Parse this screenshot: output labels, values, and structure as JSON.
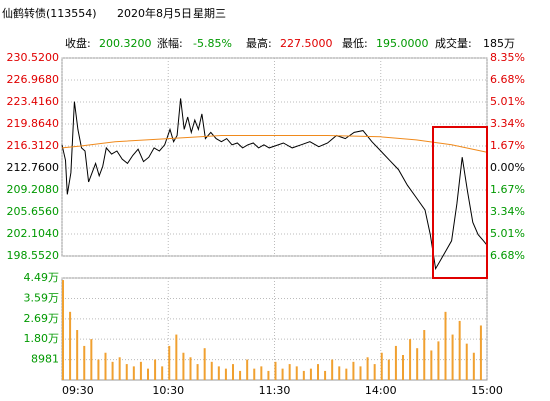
{
  "header": {
    "name": "仙鹤转债(113554)",
    "date": "2020年8月5日",
    "weekday": "星期三"
  },
  "stats": [
    {
      "label": "收盘:",
      "value": "200.3200"
    },
    {
      "label": "涨幅:",
      "value": "-5.85%"
    },
    {
      "label": "最高:",
      "value": "227.5000"
    },
    {
      "label": "最低:",
      "value": "195.0000"
    },
    {
      "label": "成交量:",
      "value": "185万"
    }
  ],
  "chart_data": [
    {
      "type": "line",
      "x": [
        0,
        2,
        3,
        5,
        7,
        9,
        11,
        13,
        15,
        17,
        19,
        21,
        23,
        25,
        28,
        31,
        34,
        37,
        40,
        43,
        46,
        49,
        52,
        55,
        58,
        61,
        63,
        65,
        67,
        69,
        71,
        73,
        75,
        77,
        79,
        81,
        84,
        87,
        90,
        93,
        96,
        99,
        102,
        105,
        108,
        111,
        114,
        117,
        120,
        125,
        130,
        135,
        140,
        145,
        150,
        155,
        160,
        165,
        170,
        175,
        180,
        185,
        190,
        195,
        200,
        205,
        208,
        211,
        214,
        217,
        220,
        223,
        226,
        229,
        232,
        235,
        238,
        240
      ],
      "series": [
        {
          "color": "#000000",
          "values": [
            216.5,
            214,
            208.5,
            212,
            223.5,
            219,
            216,
            215.5,
            210.5,
            212,
            213.5,
            211.5,
            213,
            216,
            215,
            215.5,
            214.2,
            213.5,
            214.8,
            215.8,
            213.8,
            214.5,
            216,
            215.5,
            216.5,
            219,
            217,
            218,
            224,
            219,
            221,
            218.5,
            220.5,
            219,
            221.5,
            217.5,
            218.5,
            217.5,
            217,
            217.5,
            216.5,
            216.8,
            216,
            216.5,
            216.8,
            216,
            216.5,
            216,
            216.3,
            216.8,
            216,
            216.5,
            217,
            216.2,
            216.8,
            218,
            217.5,
            218.5,
            218.8,
            217,
            215.5,
            214,
            212.5,
            210,
            208,
            206,
            202,
            196.5,
            198,
            199.5,
            201,
            207,
            214.5,
            209,
            204,
            202,
            201,
            200.3
          ]
        },
        {
          "color": "#f08a1c",
          "x": [
            0,
            10,
            30,
            60,
            90,
            120,
            150,
            180,
            200,
            220,
            240
          ],
          "values": [
            216,
            216.3,
            217,
            217.5,
            218,
            218,
            218,
            217.8,
            217.3,
            216.5,
            215.3
          ]
        }
      ],
      "xlim": [
        0,
        240
      ],
      "ylim": [
        198.552,
        230.52
      ],
      "yticks": [
        {
          "value": 230.52,
          "label": "230.5200"
        },
        {
          "value": 226.968,
          "label": "226.9680"
        },
        {
          "value": 223.416,
          "label": "223.4160"
        },
        {
          "value": 219.864,
          "label": "219.8640"
        },
        {
          "value": 216.312,
          "label": "216.3120"
        },
        {
          "value": 212.76,
          "label": "212.7600"
        },
        {
          "value": 209.208,
          "label": "209.2080"
        },
        {
          "value": 205.656,
          "label": "205.6560"
        },
        {
          "value": 202.104,
          "label": "202.1040"
        },
        {
          "value": 198.552,
          "label": "198.5520"
        }
      ],
      "y2lim": [
        -6.68,
        8.35
      ],
      "y2ticks": [
        {
          "value": 8.35,
          "label": "8.35%"
        },
        {
          "value": 6.68,
          "label": "6.68%"
        },
        {
          "value": 5.01,
          "label": "5.01%"
        },
        {
          "value": 3.34,
          "label": "3.34%"
        },
        {
          "value": 1.67,
          "label": "1.67%"
        },
        {
          "value": 0,
          "label": "0.00%"
        },
        {
          "value": -1.67,
          "label": "1.67%"
        },
        {
          "value": -3.34,
          "label": "3.34%"
        },
        {
          "value": -5.01,
          "label": "5.01%"
        },
        {
          "value": -6.68,
          "label": "6.68%"
        }
      ],
      "grid": true
    },
    {
      "type": "bar",
      "color": "#f0a030",
      "x": [
        0,
        4,
        8,
        12,
        16,
        20,
        24,
        28,
        32,
        36,
        40,
        44,
        48,
        52,
        56,
        60,
        64,
        68,
        72,
        76,
        80,
        84,
        88,
        92,
        96,
        100,
        104,
        108,
        112,
        116,
        120,
        124,
        128,
        132,
        136,
        140,
        144,
        148,
        152,
        156,
        160,
        164,
        168,
        172,
        176,
        180,
        184,
        188,
        192,
        196,
        200,
        204,
        208,
        212,
        216,
        220,
        224,
        228,
        232,
        236
      ],
      "values": [
        44000,
        30000,
        22000,
        15000,
        18000,
        9000,
        12000,
        8000,
        10000,
        7000,
        6000,
        8000,
        5000,
        9000,
        6000,
        15000,
        20000,
        12000,
        10000,
        7000,
        14000,
        8000,
        6000,
        5000,
        7000,
        4000,
        9000,
        5000,
        6000,
        4000,
        8000,
        5000,
        7000,
        6000,
        4000,
        5000,
        7000,
        4000,
        9000,
        6000,
        5000,
        8000,
        6000,
        10000,
        7000,
        12000,
        9000,
        15000,
        11000,
        18000,
        14000,
        22000,
        13000,
        17000,
        30000,
        20000,
        26000,
        16000,
        12000,
        24000
      ],
      "xlim": [
        0,
        240
      ],
      "xticks": [
        {
          "value": 0,
          "label": "09:30"
        },
        {
          "value": 60,
          "label": "10:30"
        },
        {
          "value": 120,
          "label": "11:30"
        },
        {
          "value": 180,
          "label": "14:00"
        },
        {
          "value": 240,
          "label": "15:00"
        }
      ],
      "ylim": [
        0,
        44900
      ],
      "yticks": [
        {
          "value": 44900,
          "label": "4.49万"
        },
        {
          "value": 35900,
          "label": "3.59万"
        },
        {
          "value": 26900,
          "label": "2.69万"
        },
        {
          "value": 18000,
          "label": "1.80万"
        },
        8981
      ],
      "grid": true
    }
  ]
}
